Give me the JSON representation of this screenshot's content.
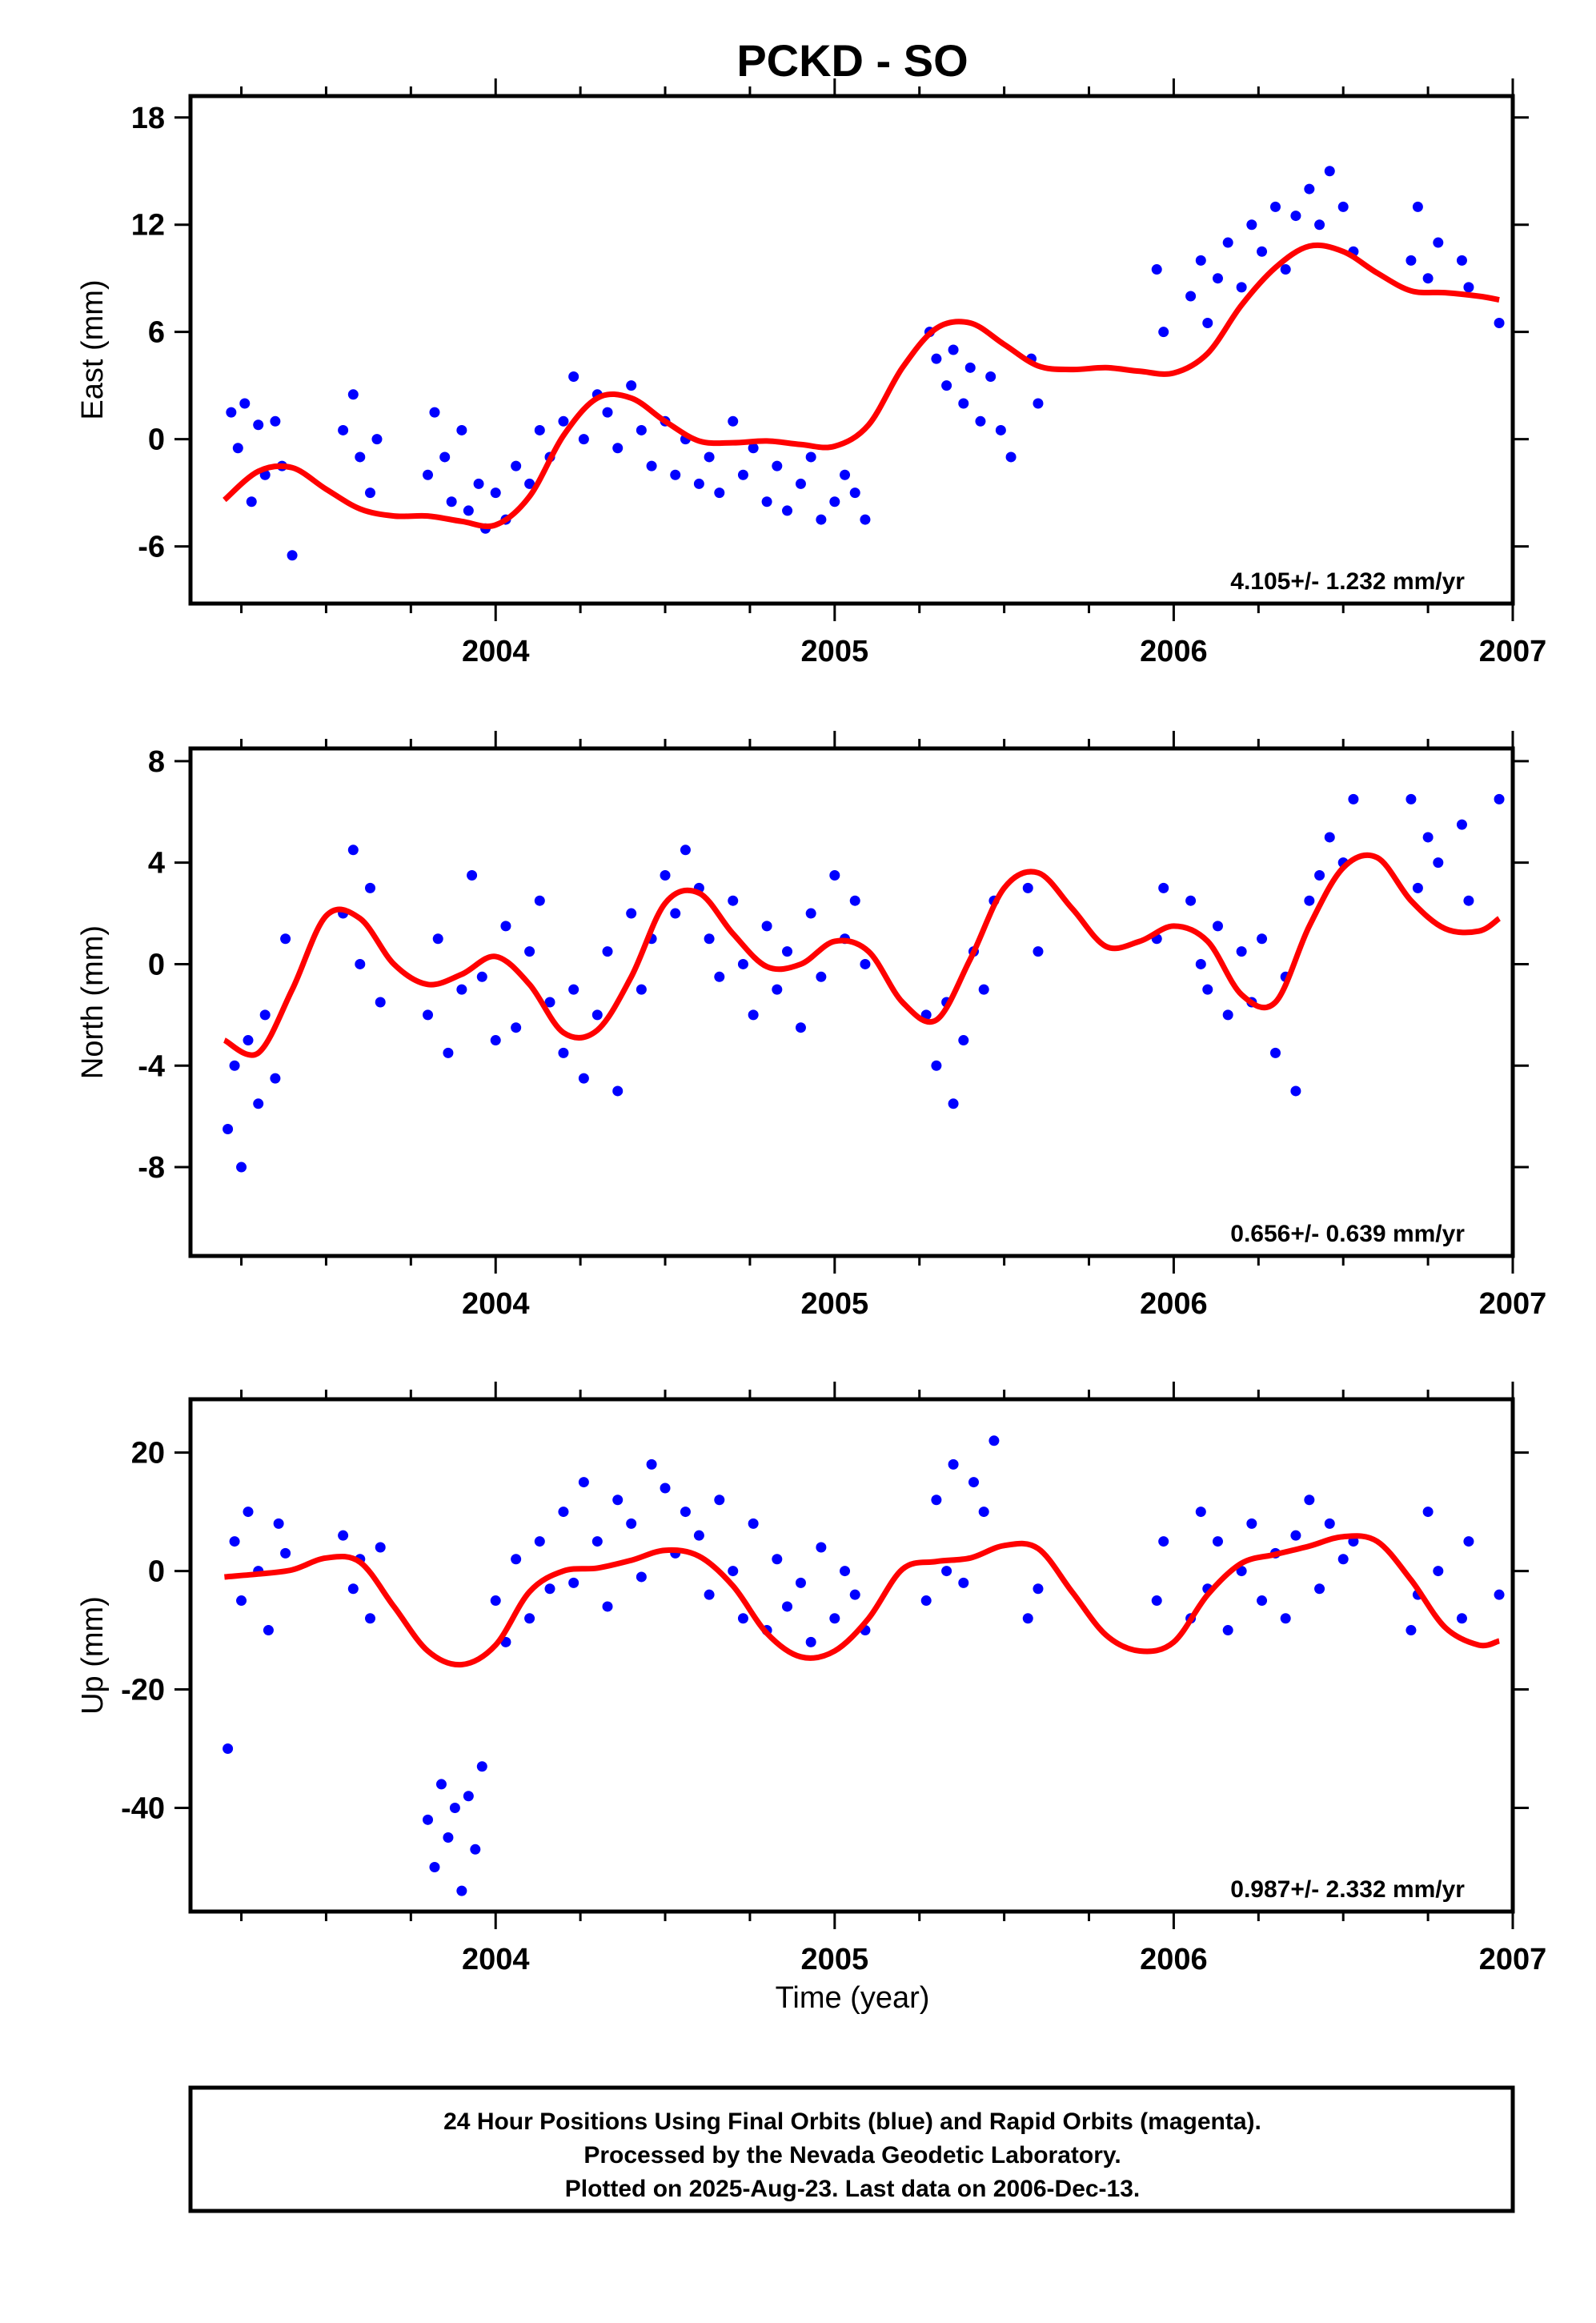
{
  "title": "PCKD - SO",
  "xlabel": "Time (year)",
  "footer": {
    "line1": "24 Hour Positions Using Final Orbits (blue) and Rapid Orbits (magenta).",
    "line2": "Processed by the Nevada Geodetic Laboratory.",
    "line3": "Plotted on 2025-Aug-23. Last data on 2006-Dec-13."
  },
  "colors": {
    "points": "#0000ff",
    "fit": "#ff0000",
    "frame": "#000000"
  },
  "chart_data": [
    {
      "type": "scatter",
      "ylabel": "East (mm)",
      "rate_label": "4.105+/- 1.232 mm/yr",
      "xlim": [
        2003.1,
        2007.0
      ],
      "ylim": [
        -9.2,
        19.2
      ],
      "yticks": [
        -6,
        0,
        6,
        12,
        18
      ],
      "xticks": [
        2004,
        2005,
        2006,
        2007
      ],
      "points_x": [
        2003.22,
        2003.24,
        2003.26,
        2003.28,
        2003.3,
        2003.32,
        2003.35,
        2003.37,
        2003.4,
        2003.55,
        2003.58,
        2003.6,
        2003.63,
        2003.65,
        2003.8,
        2003.82,
        2003.85,
        2003.87,
        2003.9,
        2003.92,
        2003.95,
        2003.97,
        2004.0,
        2004.03,
        2004.06,
        2004.1,
        2004.13,
        2004.16,
        2004.2,
        2004.23,
        2004.26,
        2004.3,
        2004.33,
        2004.36,
        2004.4,
        2004.43,
        2004.46,
        2004.5,
        2004.53,
        2004.56,
        2004.6,
        2004.63,
        2004.66,
        2004.7,
        2004.73,
        2004.76,
        2004.8,
        2004.83,
        2004.86,
        2004.9,
        2004.93,
        2004.96,
        2005.0,
        2005.03,
        2005.06,
        2005.09,
        2005.28,
        2005.3,
        2005.33,
        2005.35,
        2005.38,
        2005.4,
        2005.43,
        2005.46,
        2005.49,
        2005.52,
        2005.58,
        2005.6,
        2005.95,
        2005.97,
        2006.05,
        2006.08,
        2006.1,
        2006.13,
        2006.16,
        2006.2,
        2006.23,
        2006.26,
        2006.3,
        2006.33,
        2006.36,
        2006.4,
        2006.43,
        2006.46,
        2006.5,
        2006.53,
        2006.7,
        2006.72,
        2006.75,
        2006.78,
        2006.85,
        2006.87,
        2006.96
      ],
      "points_y": [
        1.5,
        -0.5,
        2.0,
        -3.5,
        0.8,
        -2.0,
        1.0,
        -1.5,
        -6.5,
        0.5,
        2.5,
        -1.0,
        -3.0,
        0.0,
        -2.0,
        1.5,
        -1.0,
        -3.5,
        0.5,
        -4.0,
        -2.5,
        -5.0,
        -3.0,
        -4.5,
        -1.5,
        -2.5,
        0.5,
        -1.0,
        1.0,
        3.5,
        0.0,
        2.5,
        1.5,
        -0.5,
        3.0,
        0.5,
        -1.5,
        1.0,
        -2.0,
        0.0,
        -2.5,
        -1.0,
        -3.0,
        1.0,
        -2.0,
        -0.5,
        -3.5,
        -1.5,
        -4.0,
        -2.5,
        -1.0,
        -4.5,
        -3.5,
        -2.0,
        -3.0,
        -4.5,
        6.0,
        4.5,
        3.0,
        5.0,
        2.0,
        4.0,
        1.0,
        3.5,
        0.5,
        -1.0,
        4.5,
        2.0,
        9.5,
        6.0,
        8.0,
        10.0,
        6.5,
        9.0,
        11.0,
        8.5,
        12.0,
        10.5,
        13.0,
        9.5,
        12.5,
        14.0,
        12.0,
        15.0,
        13.0,
        10.5,
        10.0,
        13.0,
        9.0,
        11.0,
        10.0,
        8.5,
        6.5
      ],
      "fit_x": [
        2003.2,
        2003.3,
        2003.4,
        2003.5,
        2003.6,
        2003.7,
        2003.8,
        2003.9,
        2004.0,
        2004.1,
        2004.2,
        2004.3,
        2004.4,
        2004.5,
        2004.6,
        2004.7,
        2004.8,
        2004.9,
        2005.0,
        2005.1,
        2005.2,
        2005.3,
        2005.4,
        2005.5,
        2005.6,
        2005.7,
        2005.8,
        2005.9,
        2006.0,
        2006.1,
        2006.2,
        2006.3,
        2006.4,
        2006.5,
        2006.6,
        2006.7,
        2006.8,
        2006.9,
        2006.96
      ],
      "fit_y": [
        -3.4,
        -1.8,
        -1.6,
        -2.8,
        -3.9,
        -4.3,
        -4.3,
        -4.6,
        -4.8,
        -3.2,
        0.2,
        2.3,
        2.3,
        1.0,
        -0.1,
        -0.2,
        -0.1,
        -0.3,
        -0.4,
        0.8,
        4.0,
        6.2,
        6.5,
        5.3,
        4.1,
        3.9,
        4.0,
        3.8,
        3.7,
        4.8,
        7.5,
        9.6,
        10.8,
        10.5,
        9.3,
        8.3,
        8.2,
        8.0,
        7.8
      ]
    },
    {
      "type": "scatter",
      "ylabel": "North (mm)",
      "rate_label": "0.656+/- 0.639 mm/yr",
      "xlim": [
        2003.1,
        2007.0
      ],
      "ylim": [
        -11.5,
        8.5
      ],
      "yticks": [
        -8,
        -4,
        0,
        4,
        8
      ],
      "xticks": [
        2004,
        2005,
        2006,
        2007
      ],
      "points_x": [
        2003.21,
        2003.23,
        2003.25,
        2003.27,
        2003.3,
        2003.32,
        2003.35,
        2003.38,
        2003.55,
        2003.58,
        2003.6,
        2003.63,
        2003.66,
        2003.8,
        2003.83,
        2003.86,
        2003.9,
        2003.93,
        2003.96,
        2004.0,
        2004.03,
        2004.06,
        2004.1,
        2004.13,
        2004.16,
        2004.2,
        2004.23,
        2004.26,
        2004.3,
        2004.33,
        2004.36,
        2004.4,
        2004.43,
        2004.46,
        2004.5,
        2004.53,
        2004.56,
        2004.6,
        2004.63,
        2004.66,
        2004.7,
        2004.73,
        2004.76,
        2004.8,
        2004.83,
        2004.86,
        2004.9,
        2004.93,
        2004.96,
        2005.0,
        2005.03,
        2005.06,
        2005.09,
        2005.27,
        2005.3,
        2005.33,
        2005.35,
        2005.38,
        2005.41,
        2005.44,
        2005.47,
        2005.57,
        2005.6,
        2005.95,
        2005.97,
        2006.05,
        2006.08,
        2006.1,
        2006.13,
        2006.16,
        2006.2,
        2006.23,
        2006.26,
        2006.3,
        2006.33,
        2006.36,
        2006.4,
        2006.43,
        2006.46,
        2006.5,
        2006.53,
        2006.7,
        2006.72,
        2006.75,
        2006.78,
        2006.85,
        2006.87,
        2006.96
      ],
      "points_y": [
        -6.5,
        -4.0,
        -8.0,
        -3.0,
        -5.5,
        -2.0,
        -4.5,
        1.0,
        2.0,
        4.5,
        0.0,
        3.0,
        -1.5,
        -2.0,
        1.0,
        -3.5,
        -1.0,
        3.5,
        -0.5,
        -3.0,
        1.5,
        -2.5,
        0.5,
        2.5,
        -1.5,
        -3.5,
        -1.0,
        -4.5,
        -2.0,
        0.5,
        -5.0,
        2.0,
        -1.0,
        1.0,
        3.5,
        2.0,
        4.5,
        3.0,
        1.0,
        -0.5,
        2.5,
        0.0,
        -2.0,
        1.5,
        -1.0,
        0.5,
        -2.5,
        2.0,
        -0.5,
        3.5,
        1.0,
        2.5,
        0.0,
        -2.0,
        -4.0,
        -1.5,
        -5.5,
        -3.0,
        0.5,
        -1.0,
        2.5,
        3.0,
        0.5,
        1.0,
        3.0,
        2.5,
        0.0,
        -1.0,
        1.5,
        -2.0,
        0.5,
        -1.5,
        1.0,
        -3.5,
        -0.5,
        -5.0,
        2.5,
        3.5,
        5.0,
        4.0,
        6.5,
        6.5,
        3.0,
        5.0,
        4.0,
        5.5,
        2.5,
        6.5
      ],
      "fit_x": [
        2003.2,
        2003.3,
        2003.4,
        2003.5,
        2003.6,
        2003.7,
        2003.8,
        2003.9,
        2004.0,
        2004.1,
        2004.2,
        2004.3,
        2004.4,
        2004.5,
        2004.6,
        2004.7,
        2004.8,
        2004.9,
        2005.0,
        2005.1,
        2005.2,
        2005.3,
        2005.4,
        2005.5,
        2005.6,
        2005.7,
        2005.8,
        2005.9,
        2006.0,
        2006.1,
        2006.2,
        2006.3,
        2006.4,
        2006.5,
        2006.6,
        2006.7,
        2006.8,
        2006.9,
        2006.96
      ],
      "fit_y": [
        -3.0,
        -3.5,
        -1.0,
        1.9,
        1.8,
        0.0,
        -0.8,
        -0.4,
        0.3,
        -0.8,
        -2.7,
        -2.6,
        -0.5,
        2.4,
        2.8,
        1.2,
        -0.1,
        0.0,
        0.9,
        0.5,
        -1.5,
        -2.2,
        0.2,
        3.0,
        3.6,
        2.2,
        0.7,
        0.9,
        1.5,
        0.9,
        -1.2,
        -1.5,
        1.5,
        3.8,
        4.2,
        2.5,
        1.4,
        1.3,
        1.8
      ]
    },
    {
      "type": "scatter",
      "ylabel": "Up (mm)",
      "rate_label": "0.987+/- 2.332 mm/yr",
      "xlim": [
        2003.1,
        2007.0
      ],
      "ylim": [
        -57.5,
        29.0
      ],
      "yticks": [
        -40,
        -20,
        0,
        20
      ],
      "xticks": [
        2004,
        2005,
        2006,
        2007
      ],
      "points_x": [
        2003.21,
        2003.23,
        2003.25,
        2003.27,
        2003.3,
        2003.33,
        2003.36,
        2003.38,
        2003.55,
        2003.58,
        2003.6,
        2003.63,
        2003.66,
        2003.8,
        2003.82,
        2003.84,
        2003.86,
        2003.88,
        2003.9,
        2003.92,
        2003.94,
        2003.96,
        2004.0,
        2004.03,
        2004.06,
        2004.1,
        2004.13,
        2004.16,
        2004.2,
        2004.23,
        2004.26,
        2004.3,
        2004.33,
        2004.36,
        2004.4,
        2004.43,
        2004.46,
        2004.5,
        2004.53,
        2004.56,
        2004.6,
        2004.63,
        2004.66,
        2004.7,
        2004.73,
        2004.76,
        2004.8,
        2004.83,
        2004.86,
        2004.9,
        2004.93,
        2004.96,
        2005.0,
        2005.03,
        2005.06,
        2005.09,
        2005.27,
        2005.3,
        2005.33,
        2005.35,
        2005.38,
        2005.41,
        2005.44,
        2005.47,
        2005.57,
        2005.6,
        2005.95,
        2005.97,
        2006.05,
        2006.08,
        2006.1,
        2006.13,
        2006.16,
        2006.2,
        2006.23,
        2006.26,
        2006.3,
        2006.33,
        2006.36,
        2006.4,
        2006.43,
        2006.46,
        2006.5,
        2006.53,
        2006.7,
        2006.72,
        2006.75,
        2006.78,
        2006.85,
        2006.87,
        2006.96
      ],
      "points_y": [
        -30,
        5,
        -5,
        10,
        0,
        -10,
        8,
        3,
        6,
        -3,
        2,
        -8,
        4,
        -42,
        -50,
        -36,
        -45,
        -40,
        -54,
        -38,
        -47,
        -33,
        -5,
        -12,
        2,
        -8,
        5,
        -3,
        10,
        -2,
        15,
        5,
        -6,
        12,
        8,
        -1,
        18,
        14,
        3,
        10,
        6,
        -4,
        12,
        0,
        -8,
        8,
        -10,
        2,
        -6,
        -2,
        -12,
        4,
        -8,
        0,
        -4,
        -10,
        -5,
        12,
        0,
        18,
        -2,
        15,
        10,
        22,
        -8,
        -3,
        -5,
        5,
        -8,
        10,
        -3,
        5,
        -10,
        0,
        8,
        -5,
        3,
        -8,
        6,
        12,
        -3,
        8,
        2,
        5,
        -10,
        -4,
        10,
        0,
        -8,
        5,
        -4
      ],
      "fit_x": [
        2003.2,
        2003.3,
        2003.4,
        2003.5,
        2003.6,
        2003.7,
        2003.8,
        2003.9,
        2004.0,
        2004.1,
        2004.2,
        2004.3,
        2004.4,
        2004.5,
        2004.6,
        2004.7,
        2004.8,
        2004.9,
        2005.0,
        2005.1,
        2005.2,
        2005.3,
        2005.4,
        2005.5,
        2005.6,
        2005.7,
        2005.8,
        2005.9,
        2006.0,
        2006.1,
        2006.2,
        2006.3,
        2006.4,
        2006.5,
        2006.6,
        2006.7,
        2006.8,
        2006.9,
        2006.96
      ],
      "fit_y": [
        -1.0,
        -0.5,
        0.2,
        2.2,
        1.5,
        -6.0,
        -13.5,
        -15.8,
        -12.5,
        -3.5,
        0.0,
        0.5,
        1.8,
        3.5,
        2.5,
        -2.5,
        -10.5,
        -14.5,
        -13.5,
        -8.0,
        0.3,
        1.6,
        2.2,
        4.3,
        3.8,
        -3.5,
        -10.8,
        -13.5,
        -12.0,
        -4.0,
        1.3,
        2.8,
        4.2,
        5.8,
        5.0,
        -1.5,
        -9.5,
        -12.5,
        -11.8
      ]
    }
  ]
}
